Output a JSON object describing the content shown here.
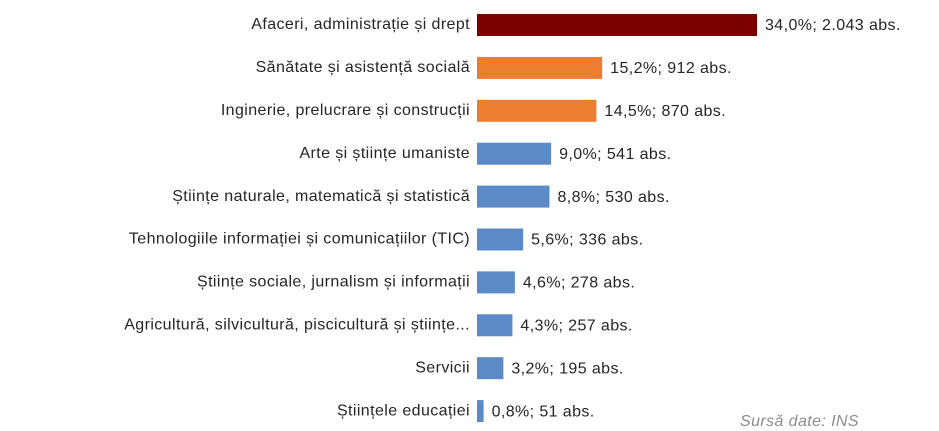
{
  "chart_data": {
    "type": "bar",
    "orientation": "horizontal",
    "categories": [
      "Afaceri, administrație și drept",
      "Sănătate și asistență socială",
      "Inginerie, prelucrare și construcții",
      "Arte și științe umaniste",
      "Științe naturale, matematică și statistică",
      "Tehnologiile informației și comunicațiilor (TIC)",
      "Științe sociale, jurnalism și informații",
      "Agricultură, silvicultură, piscicultură și științe...",
      "Servicii",
      "Științele educației"
    ],
    "values": [
      34.0,
      15.2,
      14.5,
      9.0,
      8.8,
      5.6,
      4.6,
      4.3,
      3.2,
      0.8
    ],
    "value_labels": [
      "34,0%; 2.043 abs.",
      "15,2%; 912 abs.",
      "14,5%; 870 abs.",
      "9,0%; 541 abs.",
      "8,8%; 530 abs.",
      "5,6%; 336 abs.",
      "4,6%; 278 abs.",
      "4,3%; 257 abs.",
      "3,2%; 195 abs.",
      "0,8%; 51 abs."
    ],
    "colors": [
      "#7b0000",
      "#ed7d31",
      "#ed7d31",
      "#5b8ac6",
      "#5b8ac6",
      "#5b8ac6",
      "#5b8ac6",
      "#5b8ac6",
      "#5b8ac6",
      "#5b8ac6"
    ],
    "annotation": "Sursă date: INS"
  }
}
